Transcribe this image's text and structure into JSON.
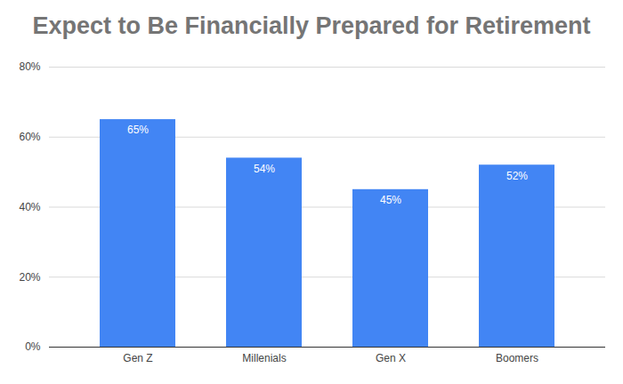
{
  "chart_data": {
    "type": "bar",
    "title": "Expect to Be Financially Prepared for Retirement",
    "categories": [
      "Gen Z",
      "Millenials",
      "Gen X",
      "Boomers"
    ],
    "values": [
      65,
      54,
      45,
      52
    ],
    "value_labels": [
      "65%",
      "54%",
      "45%",
      "52%"
    ],
    "color": "#4285f4",
    "ylim": [
      0,
      80
    ],
    "yticks": [
      {
        "value": 0,
        "label": "0%"
      },
      {
        "value": 20,
        "label": "20%"
      },
      {
        "value": 40,
        "label": "40%"
      },
      {
        "value": 60,
        "label": "60%"
      },
      {
        "value": 80,
        "label": "80%"
      }
    ],
    "grid": true,
    "data_labels": true
  }
}
